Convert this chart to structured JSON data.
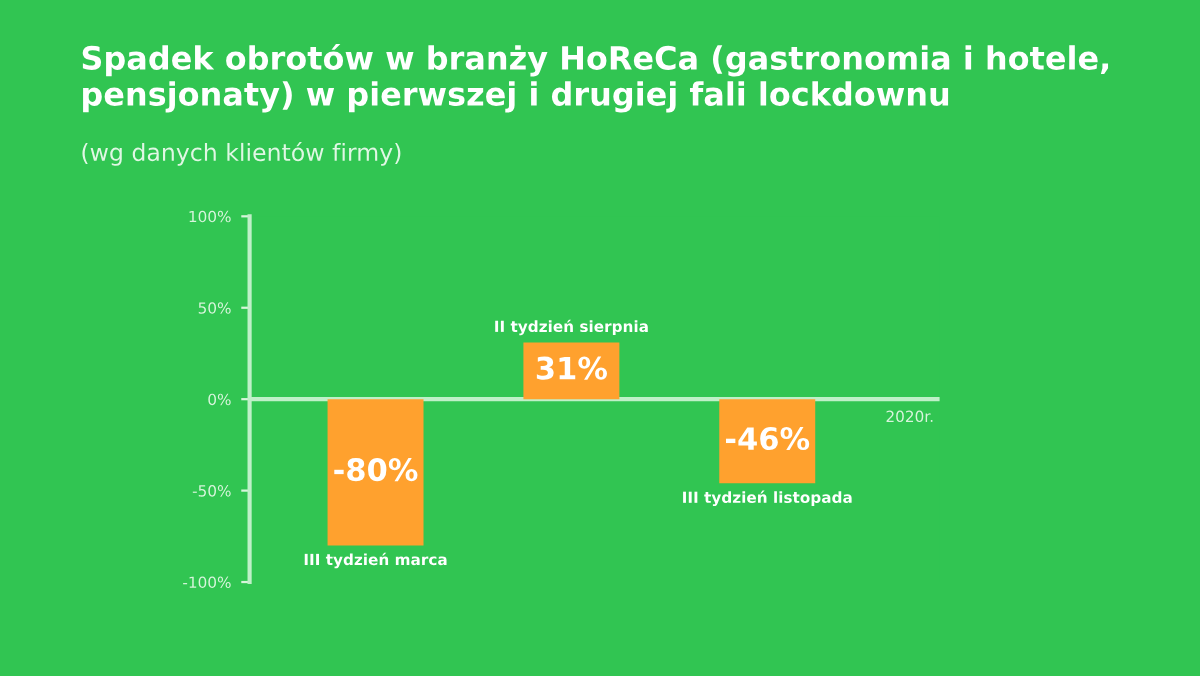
{
  "chart_data": {
    "type": "bar",
    "title": "Spadek obrotów w branży HoReCa (gastronomia i hotele, pensjonaty) w pierwszej i drugiej fali lockdownu",
    "subtitle": "(wg danych klientów firmy)",
    "xlabel": "2020r.",
    "categories": [
      "III tydzień marca",
      "II tydzień sierpnia",
      "III tydzień listopada"
    ],
    "values": [
      -80,
      31,
      -46
    ],
    "value_labels": [
      "-80%",
      "31%",
      "-46%"
    ],
    "color": "#ffa12e",
    "ylim": [
      -100,
      100
    ],
    "yticks": [
      {
        "value": 100,
        "label": "100%"
      },
      {
        "value": 50,
        "label": "50%"
      },
      {
        "value": 0,
        "label": "0%"
      },
      {
        "value": -50,
        "label": "-50%"
      },
      {
        "value": -100,
        "label": "-100%"
      }
    ],
    "ref_lines": [
      {
        "axis": "y",
        "value": 0,
        "color": "#bff0c8"
      }
    ],
    "grid": false,
    "legend": false,
    "tick_labels": "y"
  }
}
